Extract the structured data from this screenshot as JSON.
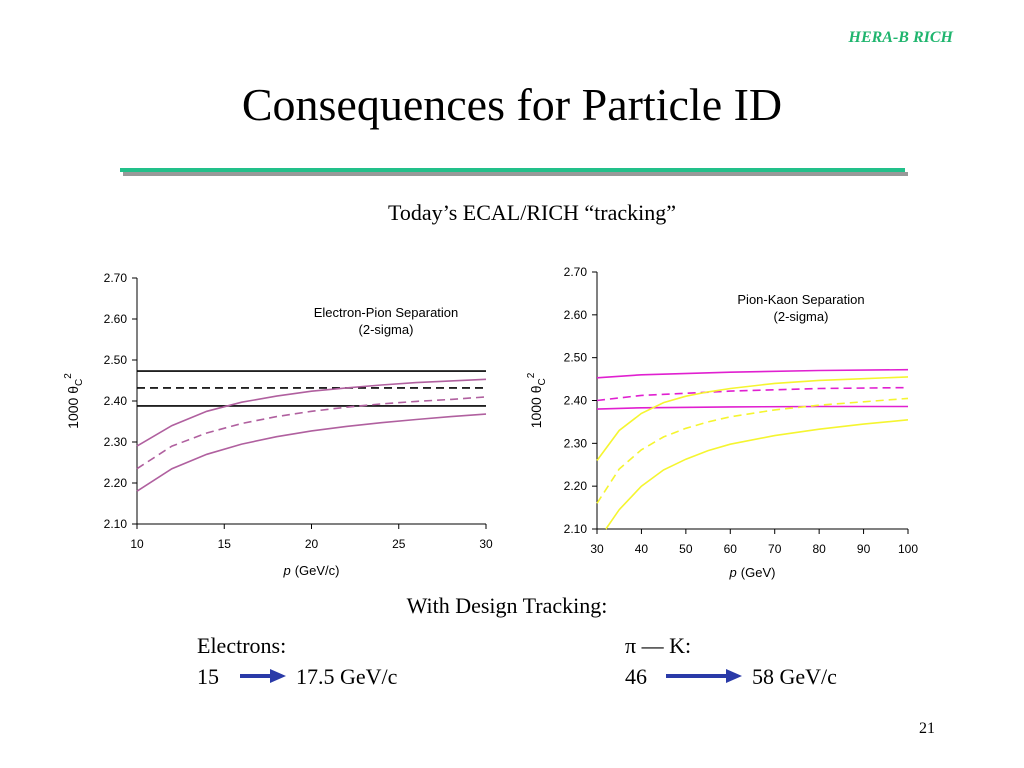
{
  "header": {
    "brand": "HERA-B RICH",
    "title": "Consequences for Particle ID"
  },
  "subtitle": "Today’s ECAL/RICH “tracking”",
  "chart_data": [
    {
      "type": "line",
      "annotation": [
        "Electron-Pion Separation",
        "(2-sigma)"
      ],
      "xlabel": {
        "var": "p",
        "unit": "(GeV/c)"
      },
      "ylabel": {
        "text": "1000 θ",
        "sub": "C",
        "sup": "2"
      },
      "xlim": [
        10,
        30
      ],
      "xticks": [
        10,
        15,
        20,
        25,
        30
      ],
      "ylim": [
        2.1,
        2.7
      ],
      "yticks": [
        {
          "value": 2.1,
          "label": "2.10"
        },
        {
          "value": 2.2,
          "label": "2.20"
        },
        {
          "value": 2.3,
          "label": "2.30"
        },
        {
          "value": 2.4,
          "label": "2.40"
        },
        {
          "value": 2.5,
          "label": "2.50"
        },
        {
          "value": 2.6,
          "label": "2.60"
        },
        {
          "value": 2.7,
          "label": "2.70"
        }
      ],
      "series": [
        {
          "color": "#000000",
          "dashed": false,
          "x": [
            10,
            30
          ],
          "values": [
            2.473,
            2.473
          ]
        },
        {
          "color": "#000000",
          "dashed": true,
          "x": [
            10,
            30
          ],
          "values": [
            2.432,
            2.432
          ]
        },
        {
          "color": "#000000",
          "dashed": false,
          "x": [
            10,
            30
          ],
          "values": [
            2.388,
            2.388
          ]
        },
        {
          "color": "#b0609f",
          "dashed": false,
          "x": [
            10,
            12,
            14,
            16,
            18,
            20,
            22,
            24,
            26,
            28,
            30
          ],
          "values": [
            2.29,
            2.34,
            2.375,
            2.397,
            2.412,
            2.424,
            2.432,
            2.439,
            2.445,
            2.449,
            2.453
          ]
        },
        {
          "color": "#b0609f",
          "dashed": true,
          "x": [
            10,
            12,
            14,
            16,
            18,
            20,
            22,
            24,
            26,
            28,
            30
          ],
          "values": [
            2.235,
            2.29,
            2.322,
            2.345,
            2.362,
            2.375,
            2.385,
            2.393,
            2.399,
            2.404,
            2.41
          ]
        },
        {
          "color": "#b0609f",
          "dashed": false,
          "x": [
            10,
            12,
            14,
            16,
            18,
            20,
            22,
            24,
            26,
            28,
            30
          ],
          "values": [
            2.18,
            2.235,
            2.27,
            2.295,
            2.313,
            2.327,
            2.338,
            2.347,
            2.355,
            2.362,
            2.368
          ]
        }
      ]
    },
    {
      "type": "line",
      "annotation": [
        "Pion-Kaon Separation",
        "(2-sigma)"
      ],
      "xlabel": {
        "var": "p",
        "unit": "(GeV)"
      },
      "ylabel": {
        "text": "1000 θ",
        "sub": "C",
        "sup": "2"
      },
      "xlim": [
        30,
        100
      ],
      "xticks": [
        30,
        40,
        50,
        60,
        70,
        80,
        90,
        100
      ],
      "ylim": [
        2.1,
        2.7
      ],
      "yticks": [
        {
          "value": 2.1,
          "label": "2.10"
        },
        {
          "value": 2.2,
          "label": "2.20"
        },
        {
          "value": 2.3,
          "label": "2.30"
        },
        {
          "value": 2.4,
          "label": "2.40"
        },
        {
          "value": 2.5,
          "label": "2.50"
        },
        {
          "value": 2.6,
          "label": "2.60"
        },
        {
          "value": 2.7,
          "label": "2.70"
        }
      ],
      "series": [
        {
          "color": "#e020d0",
          "dashed": false,
          "x": [
            30,
            40,
            60,
            80,
            100
          ],
          "values": [
            2.453,
            2.46,
            2.466,
            2.47,
            2.472
          ]
        },
        {
          "color": "#e020d0",
          "dashed": true,
          "x": [
            30,
            40,
            60,
            80,
            100
          ],
          "values": [
            2.4,
            2.412,
            2.422,
            2.428,
            2.43
          ]
        },
        {
          "color": "#e020d0",
          "dashed": false,
          "x": [
            30,
            40,
            60,
            80,
            100
          ],
          "values": [
            2.38,
            2.383,
            2.385,
            2.386,
            2.386
          ]
        },
        {
          "color": "#f5f530",
          "dashed": false,
          "x": [
            30,
            35,
            40,
            45,
            50,
            55,
            60,
            70,
            80,
            90,
            100
          ],
          "values": [
            2.26,
            2.33,
            2.37,
            2.395,
            2.41,
            2.42,
            2.428,
            2.44,
            2.447,
            2.451,
            2.455
          ]
        },
        {
          "color": "#f5f530",
          "dashed": true,
          "x": [
            30,
            35,
            40,
            45,
            50,
            55,
            60,
            70,
            80,
            90,
            100
          ],
          "values": [
            2.16,
            2.24,
            2.285,
            2.315,
            2.335,
            2.35,
            2.362,
            2.378,
            2.389,
            2.397,
            2.405
          ]
        },
        {
          "color": "#f5f530",
          "dashed": false,
          "x": [
            32,
            35,
            40,
            45,
            50,
            55,
            60,
            70,
            80,
            90,
            100
          ],
          "values": [
            2.1,
            2.145,
            2.2,
            2.238,
            2.263,
            2.283,
            2.298,
            2.318,
            2.333,
            2.345,
            2.355
          ]
        }
      ]
    }
  ],
  "design": {
    "heading": "With Design Tracking:",
    "electrons": {
      "label": "Electrons:",
      "from": "15",
      "to": "17.5 GeV/c"
    },
    "pion_kaon": {
      "label": "π — K:",
      "from": "46",
      "to": "58 GeV/c"
    }
  },
  "page_number": "21"
}
